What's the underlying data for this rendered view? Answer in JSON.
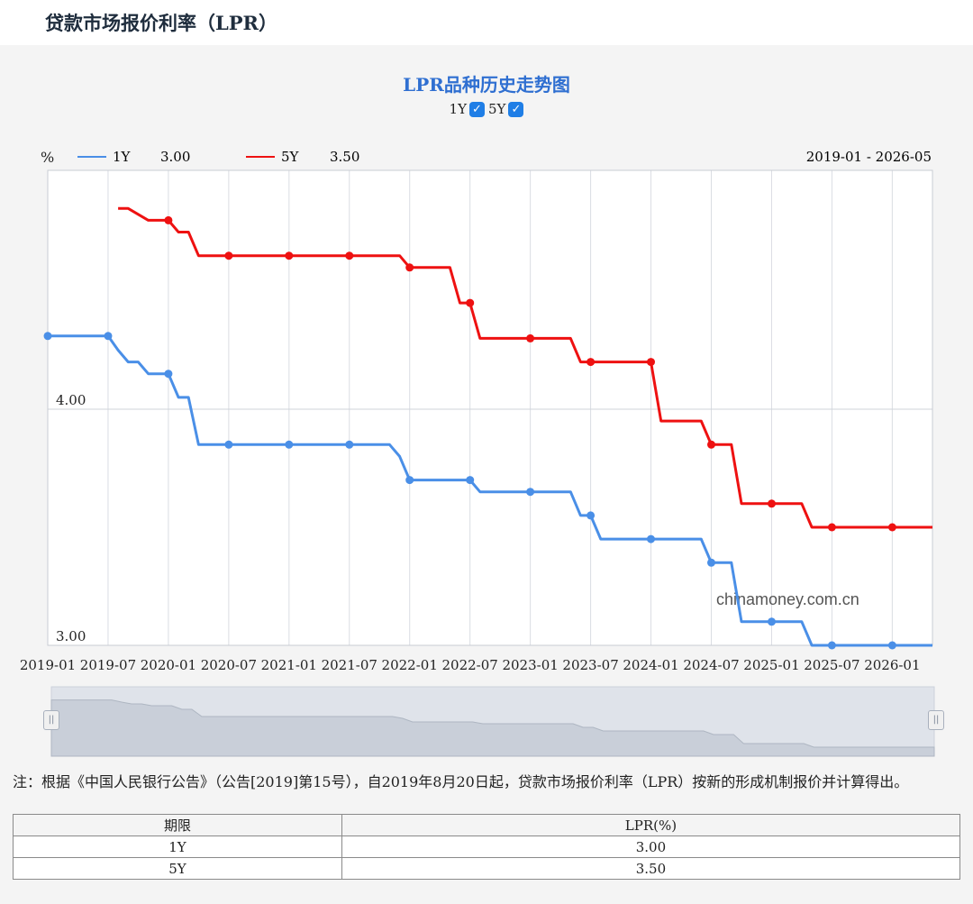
{
  "page": {
    "title": "贷款市场报价利率（LPR）"
  },
  "chart": {
    "title": "LPR品种历史走势图",
    "toggles": [
      {
        "label": "1Y",
        "checked": true
      },
      {
        "label": "5Y",
        "checked": true
      }
    ],
    "unit_label": "%",
    "legend": [
      {
        "name": "1Y",
        "value": "3.00",
        "color": "#4a8fe7"
      },
      {
        "name": "5Y",
        "value": "3.50",
        "color": "#ee1111"
      }
    ],
    "range_label": "2019-01 - 2026-05",
    "watermark": "chinamoney.com.cn"
  },
  "chart_data": {
    "type": "line",
    "x_range": [
      "2019-01",
      "2026-05"
    ],
    "ylim": [
      3.0,
      5.0
    ],
    "y_ticks": [
      {
        "value": 4.0,
        "label": "4.00"
      },
      {
        "value": 3.0,
        "label": "3.00"
      }
    ],
    "x_ticks": [
      "2019-01",
      "2019-07",
      "2020-01",
      "2020-07",
      "2021-01",
      "2021-07",
      "2022-01",
      "2022-07",
      "2023-01",
      "2023-07",
      "2024-01",
      "2024-07",
      "2025-01",
      "2025-07",
      "2026-01"
    ],
    "grid": true,
    "legend_position": "top-left",
    "series": [
      {
        "name": "1Y",
        "color": "#4a8fe7",
        "points": [
          [
            "2019-01",
            4.31
          ],
          [
            "2019-07",
            4.31
          ],
          [
            "2019-08",
            4.25
          ],
          [
            "2019-09",
            4.2
          ],
          [
            "2019-10",
            4.2
          ],
          [
            "2019-11",
            4.15
          ],
          [
            "2020-01",
            4.15
          ],
          [
            "2020-02",
            4.05
          ],
          [
            "2020-03",
            4.05
          ],
          [
            "2020-04",
            3.85
          ],
          [
            "2020-07",
            3.85
          ],
          [
            "2021-01",
            3.85
          ],
          [
            "2021-07",
            3.85
          ],
          [
            "2021-11",
            3.85
          ],
          [
            "2021-12",
            3.8
          ],
          [
            "2022-01",
            3.7
          ],
          [
            "2022-07",
            3.7
          ],
          [
            "2022-08",
            3.65
          ],
          [
            "2023-01",
            3.65
          ],
          [
            "2023-05",
            3.65
          ],
          [
            "2023-06",
            3.55
          ],
          [
            "2023-07",
            3.55
          ],
          [
            "2023-08",
            3.45
          ],
          [
            "2024-01",
            3.45
          ],
          [
            "2024-06",
            3.45
          ],
          [
            "2024-07",
            3.35
          ],
          [
            "2024-09",
            3.35
          ],
          [
            "2024-10",
            3.1
          ],
          [
            "2025-01",
            3.1
          ],
          [
            "2025-04",
            3.1
          ],
          [
            "2025-05",
            3.0
          ],
          [
            "2025-07",
            3.0
          ],
          [
            "2026-01",
            3.0
          ],
          [
            "2026-05",
            3.0
          ]
        ],
        "markers": [
          [
            "2019-01",
            4.31
          ],
          [
            "2019-07",
            4.31
          ],
          [
            "2020-01",
            4.15
          ],
          [
            "2020-07",
            3.85
          ],
          [
            "2021-01",
            3.85
          ],
          [
            "2021-07",
            3.85
          ],
          [
            "2022-01",
            3.7
          ],
          [
            "2022-07",
            3.7
          ],
          [
            "2023-01",
            3.65
          ],
          [
            "2023-07",
            3.55
          ],
          [
            "2024-01",
            3.45
          ],
          [
            "2024-07",
            3.35
          ],
          [
            "2025-01",
            3.1
          ],
          [
            "2025-07",
            3.0
          ],
          [
            "2026-01",
            3.0
          ]
        ]
      },
      {
        "name": "5Y",
        "color": "#ee1111",
        "points": [
          [
            "2019-08",
            4.85
          ],
          [
            "2019-09",
            4.85
          ],
          [
            "2019-11",
            4.8
          ],
          [
            "2020-01",
            4.8
          ],
          [
            "2020-02",
            4.75
          ],
          [
            "2020-03",
            4.75
          ],
          [
            "2020-04",
            4.65
          ],
          [
            "2020-07",
            4.65
          ],
          [
            "2021-01",
            4.65
          ],
          [
            "2021-07",
            4.65
          ],
          [
            "2021-12",
            4.65
          ],
          [
            "2022-01",
            4.6
          ],
          [
            "2022-05",
            4.6
          ],
          [
            "2022-06",
            4.45
          ],
          [
            "2022-07",
            4.45
          ],
          [
            "2022-08",
            4.3
          ],
          [
            "2023-01",
            4.3
          ],
          [
            "2023-05",
            4.3
          ],
          [
            "2023-06",
            4.2
          ],
          [
            "2023-07",
            4.2
          ],
          [
            "2024-01",
            4.2
          ],
          [
            "2024-02",
            3.95
          ],
          [
            "2024-06",
            3.95
          ],
          [
            "2024-07",
            3.85
          ],
          [
            "2024-09",
            3.85
          ],
          [
            "2024-10",
            3.6
          ],
          [
            "2025-01",
            3.6
          ],
          [
            "2025-04",
            3.6
          ],
          [
            "2025-05",
            3.5
          ],
          [
            "2025-07",
            3.5
          ],
          [
            "2026-01",
            3.5
          ],
          [
            "2026-05",
            3.5
          ]
        ],
        "markers": [
          [
            "2020-01",
            4.8
          ],
          [
            "2020-07",
            4.65
          ],
          [
            "2021-01",
            4.65
          ],
          [
            "2021-07",
            4.65
          ],
          [
            "2022-01",
            4.6
          ],
          [
            "2022-07",
            4.45
          ],
          [
            "2023-01",
            4.3
          ],
          [
            "2023-07",
            4.2
          ],
          [
            "2024-01",
            4.2
          ],
          [
            "2024-07",
            3.85
          ],
          [
            "2025-01",
            3.6
          ],
          [
            "2025-07",
            3.5
          ],
          [
            "2026-01",
            3.5
          ]
        ]
      }
    ]
  },
  "note": "注：根据《中国人民银行公告》（公告[2019]第15号），自2019年8月20日起，贷款市场报价利率（LPR）按新的形成机制报价并计算得出。",
  "table": {
    "headers": [
      "期限",
      "LPR(%)"
    ],
    "rows": [
      [
        "1Y",
        "3.00"
      ],
      [
        "5Y",
        "3.50"
      ]
    ]
  }
}
